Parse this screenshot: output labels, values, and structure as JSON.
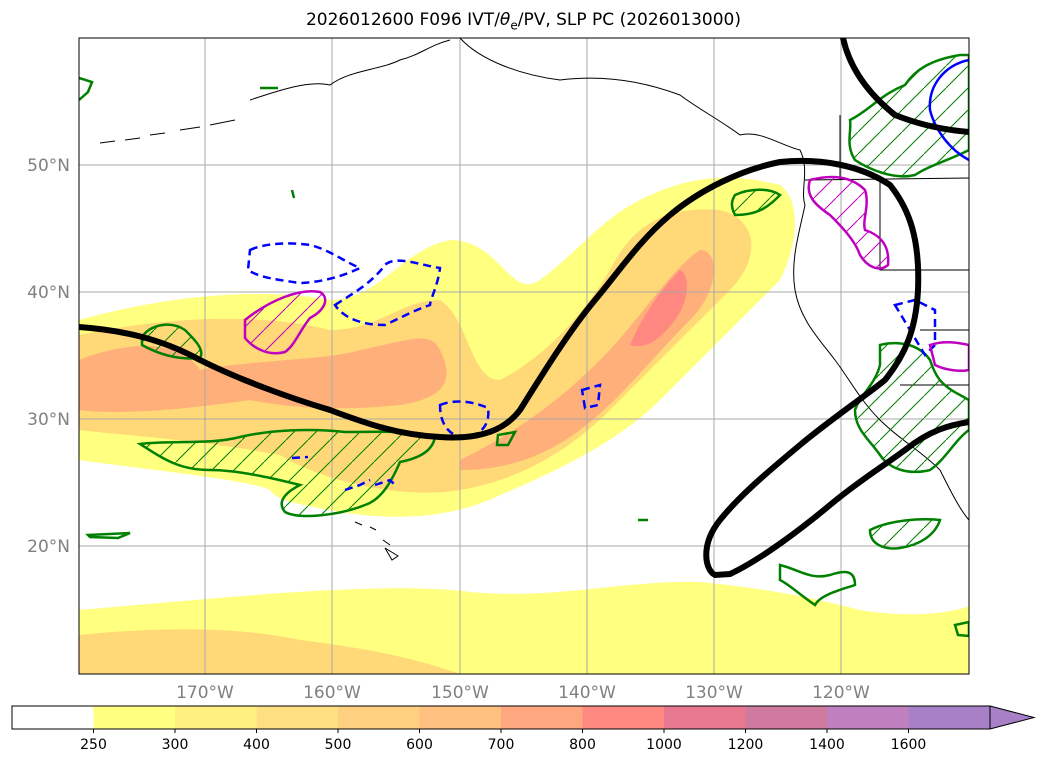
{
  "title": {
    "prefix": "2026012600 F096 IVT/",
    "theta": "θ",
    "theta_sub": "e",
    "suffix": "/PV, SLP PC (2026013000)"
  },
  "map": {
    "lon_labels": [
      "170°W",
      "160°W",
      "150°W",
      "140°W",
      "130°W",
      "120°W"
    ],
    "lat_labels": [
      "50°N",
      "40°N",
      "30°N",
      "20°N"
    ],
    "grid_color": "#a8a8a8",
    "label_color": "#808080"
  },
  "colorbar": {
    "ticks": [
      "250",
      "300",
      "400",
      "500",
      "600",
      "700",
      "800",
      "1000",
      "1200",
      "1400",
      "1600"
    ],
    "colors": [
      "#ffffff",
      "#ffff80",
      "#fff080",
      "#ffe080",
      "#ffd080",
      "#ffc080",
      "#ffa880",
      "#ff8880",
      "#e87890",
      "#d07aa0",
      "#c080c0",
      "#a880c8"
    ]
  },
  "layer_colors": {
    "ivt_low": "#ffff80",
    "ivt_mid": "#ffd878",
    "ivt_high": "#ffb07a",
    "ivt_peak": "#ff8880",
    "slp_contour": "#000000",
    "theta_e": "#008000",
    "pv_blue": "#0000ff",
    "pv_magenta": "#c000c0",
    "coast": "#000000"
  }
}
